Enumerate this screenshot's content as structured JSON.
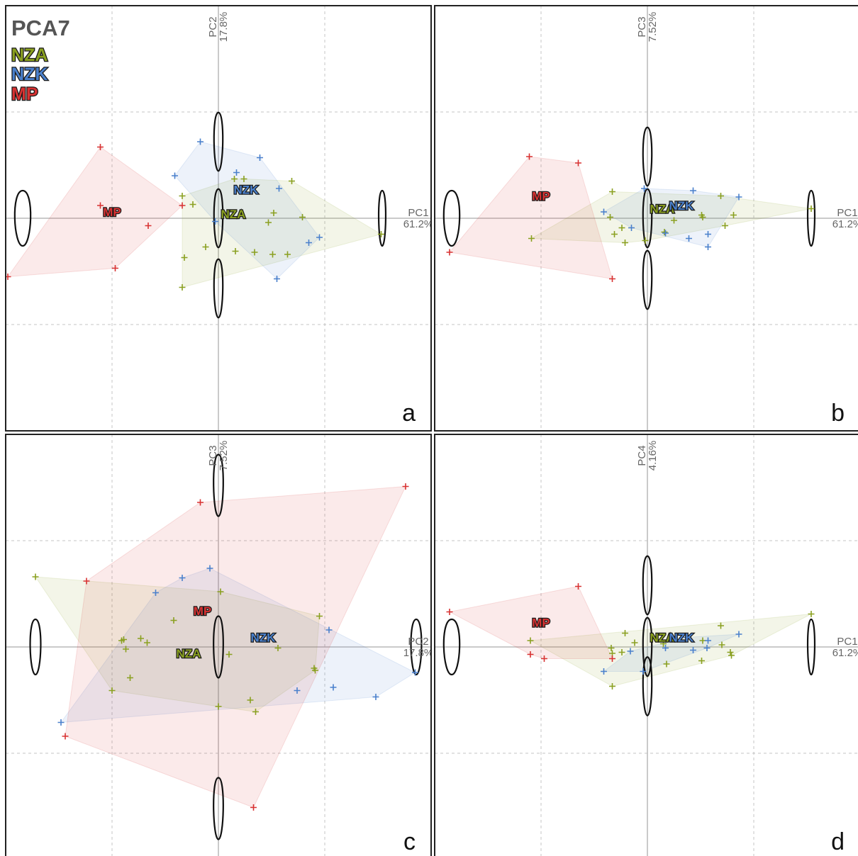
{
  "figure": {
    "title": "PCA7",
    "legend": [
      {
        "name": "NZA",
        "color": "#8aa020"
      },
      {
        "name": "NZK",
        "color": "#4a80cc"
      },
      {
        "name": "MP",
        "color": "#d83232"
      }
    ]
  },
  "chart_data": [
    {
      "type": "scatter",
      "panel": "a",
      "xlabel": "PC1",
      "xpct": "61.2%",
      "ylabel": "PC2",
      "ypct": "17.8%",
      "xlim": [
        -2.0,
        2.0
      ],
      "ylim": [
        -2.0,
        2.0
      ],
      "grid": true,
      "shapes": [
        {
          "x": -1.84,
          "y": 0,
          "w": 0.18,
          "h": 0.52
        },
        {
          "x": 1.54,
          "y": 0,
          "w": 0.08,
          "h": 0.52
        },
        {
          "x": 0,
          "y": 0.72,
          "w": 0.1,
          "h": 0.55
        },
        {
          "x": 0,
          "y": 0,
          "w": 0.1,
          "h": 0.55
        },
        {
          "x": 0,
          "y": -0.66,
          "w": 0.1,
          "h": 0.55
        }
      ],
      "series": [
        {
          "name": "NZA",
          "color": "#8aa020",
          "points": [
            [
              0.69,
              0.35
            ],
            [
              1.53,
              -0.15
            ],
            [
              0.34,
              -0.32
            ],
            [
              0.51,
              -0.34
            ],
            [
              0.79,
              0.01
            ],
            [
              0.52,
              0.05
            ],
            [
              0.15,
              0.37
            ],
            [
              -0.34,
              0.21
            ],
            [
              -0.24,
              0.13
            ],
            [
              -0.12,
              -0.27
            ],
            [
              -0.32,
              -0.37
            ],
            [
              -0.34,
              -0.65
            ],
            [
              0.16,
              -0.31
            ],
            [
              0.24,
              0.37
            ],
            [
              0.47,
              -0.04
            ],
            [
              0.65,
              -0.34
            ]
          ],
          "label": {
            "x": 0.14,
            "y": 0.04
          }
        },
        {
          "name": "NZK",
          "color": "#4a80cc",
          "points": [
            [
              -0.17,
              0.72
            ],
            [
              0.39,
              0.57
            ],
            [
              -0.41,
              0.4
            ],
            [
              0.17,
              0.43
            ],
            [
              0.57,
              0.28
            ],
            [
              0.85,
              -0.23
            ],
            [
              0.95,
              -0.18
            ],
            [
              0.55,
              -0.57
            ],
            [
              -0.03,
              -0.03
            ]
          ],
          "label": {
            "x": 0.26,
            "y": 0.27
          }
        },
        {
          "name": "MP",
          "color": "#d83232",
          "points": [
            [
              -1.11,
              0.67
            ],
            [
              -1.11,
              0.12
            ],
            [
              -0.66,
              -0.07
            ],
            [
              -1.98,
              -0.55
            ],
            [
              -0.97,
              -0.47
            ],
            [
              -0.34,
              0.12
            ]
          ],
          "label": {
            "x": -1.0,
            "y": 0.06
          }
        }
      ]
    },
    {
      "type": "scatter",
      "panel": "b",
      "xlabel": "PC1",
      "xpct": "61.2%",
      "ylabel": "PC3",
      "ypct": "7.52%",
      "xlim": [
        -2.0,
        2.0
      ],
      "ylim": [
        -2.0,
        2.0
      ],
      "grid": true,
      "shapes": [
        {
          "x": -1.84,
          "y": 0,
          "w": 0.18,
          "h": 0.52
        },
        {
          "x": 1.54,
          "y": 0,
          "w": 0.08,
          "h": 0.52
        },
        {
          "x": 0,
          "y": 0.58,
          "w": 0.1,
          "h": 0.55
        },
        {
          "x": 0,
          "y": 0,
          "w": 0.1,
          "h": 0.55
        },
        {
          "x": 0,
          "y": -0.58,
          "w": 0.1,
          "h": 0.55
        }
      ],
      "series": [
        {
          "name": "NZA",
          "color": "#8aa020",
          "points": [
            [
              -1.09,
              -0.19
            ],
            [
              -0.33,
              0.25
            ],
            [
              -0.35,
              0.01
            ],
            [
              -0.24,
              -0.09
            ],
            [
              -0.21,
              -0.23
            ],
            [
              -0.31,
              -0.15
            ],
            [
              -0.02,
              -0.21
            ],
            [
              0.16,
              -0.13
            ],
            [
              0.25,
              -0.02
            ],
            [
              0.51,
              0.03
            ],
            [
              0.69,
              0.21
            ],
            [
              0.73,
              -0.07
            ],
            [
              0.81,
              0.03
            ],
            [
              1.54,
              0.09
            ],
            [
              0.52,
              0.01
            ]
          ],
          "label": {
            "x": 0.14,
            "y": 0.09
          }
        },
        {
          "name": "NZK",
          "color": "#4a80cc",
          "points": [
            [
              -0.41,
              0.06
            ],
            [
              -0.15,
              -0.09
            ],
            [
              -0.03,
              0.28
            ],
            [
              0.43,
              0.26
            ],
            [
              0.86,
              0.2
            ],
            [
              0.17,
              -0.14
            ],
            [
              0.39,
              -0.19
            ],
            [
              0.57,
              -0.27
            ],
            [
              0.57,
              -0.15
            ]
          ],
          "label": {
            "x": 0.32,
            "y": 0.12
          }
        },
        {
          "name": "MP",
          "color": "#d83232",
          "points": [
            [
              -1.11,
              0.58
            ],
            [
              -0.65,
              0.52
            ],
            [
              -1.86,
              -0.32
            ],
            [
              -0.33,
              -0.57
            ]
          ],
          "label": {
            "x": -1.0,
            "y": 0.21
          }
        }
      ]
    },
    {
      "type": "scatter",
      "panel": "c",
      "xlabel": "PC2",
      "xpct": "17.8%",
      "ylabel": "PC3",
      "ypct": "7.52%",
      "xlim": [
        -2.0,
        2.0
      ],
      "ylim": [
        -2.0,
        2.0
      ],
      "grid": true,
      "shapes": [
        {
          "x": -1.72,
          "y": 0,
          "w": 0.12,
          "h": 0.52
        },
        {
          "x": 1.86,
          "y": 0,
          "w": 0.12,
          "h": 0.52
        },
        {
          "x": 0,
          "y": 1.52,
          "w": 0.11,
          "h": 0.58
        },
        {
          "x": 0,
          "y": 0,
          "w": 0.11,
          "h": 0.58
        },
        {
          "x": 0,
          "y": -1.52,
          "w": 0.11,
          "h": 0.58
        }
      ],
      "series": [
        {
          "name": "NZA",
          "color": "#8aa020",
          "points": [
            [
              -1.72,
              0.66
            ],
            [
              0.02,
              0.52
            ],
            [
              -0.42,
              0.25
            ],
            [
              -0.73,
              0.08
            ],
            [
              -0.91,
              0.06
            ],
            [
              -0.87,
              -0.02
            ],
            [
              -0.89,
              0.07
            ],
            [
              -0.67,
              0.04
            ],
            [
              -0.83,
              -0.29
            ],
            [
              -1.0,
              -0.41
            ],
            [
              0.1,
              -0.07
            ],
            [
              0.56,
              -0.01
            ],
            [
              0.95,
              0.29
            ],
            [
              0.9,
              -0.2
            ],
            [
              0.91,
              -0.22
            ],
            [
              0.3,
              -0.5
            ],
            [
              0.35,
              -0.61
            ],
            [
              0.0,
              -0.56
            ]
          ],
          "label": {
            "x": -0.28,
            "y": -0.06
          }
        },
        {
          "name": "NZK",
          "color": "#4a80cc",
          "points": [
            [
              -1.48,
              -0.71
            ],
            [
              -0.34,
              0.65
            ],
            [
              -0.08,
              0.74
            ],
            [
              -0.59,
              0.51
            ],
            [
              1.04,
              0.16
            ],
            [
              1.08,
              -0.38
            ],
            [
              0.74,
              -0.41
            ],
            [
              1.85,
              -0.24
            ],
            [
              1.48,
              -0.47
            ]
          ],
          "label": {
            "x": 0.42,
            "y": 0.09
          }
        },
        {
          "name": "MP",
          "color": "#d83232",
          "points": [
            [
              1.76,
              1.51
            ],
            [
              -0.17,
              1.36
            ],
            [
              -1.24,
              0.62
            ],
            [
              -1.44,
              -0.84
            ],
            [
              0.33,
              -1.51
            ]
          ],
          "label": {
            "x": -0.15,
            "y": 0.34
          }
        }
      ]
    },
    {
      "type": "scatter",
      "panel": "d",
      "xlabel": "PC1",
      "xpct": "61.2%",
      "ylabel": "PC4",
      "ypct": "4.16%",
      "xlim": [
        -2.0,
        2.0
      ],
      "ylim": [
        -2.0,
        2.0
      ],
      "grid": true,
      "shapes": [
        {
          "x": -1.84,
          "y": 0,
          "w": 0.18,
          "h": 0.52
        },
        {
          "x": 1.54,
          "y": 0,
          "w": 0.08,
          "h": 0.52
        },
        {
          "x": 0,
          "y": 0.58,
          "w": 0.1,
          "h": 0.55
        },
        {
          "x": 0,
          "y": 0,
          "w": 0.1,
          "h": 0.55
        },
        {
          "x": 0,
          "y": -0.37,
          "w": 0.1,
          "h": 0.55
        }
      ],
      "series": [
        {
          "name": "NZA",
          "color": "#8aa020",
          "points": [
            [
              -1.1,
              0.06
            ],
            [
              -0.34,
              -0.01
            ],
            [
              -0.33,
              -0.06
            ],
            [
              -0.24,
              -0.05
            ],
            [
              -0.12,
              0.04
            ],
            [
              -0.21,
              0.13
            ],
            [
              -0.33,
              -0.37
            ],
            [
              0.15,
              0.03
            ],
            [
              0.18,
              -0.16
            ],
            [
              0.52,
              0.06
            ],
            [
              0.69,
              0.2
            ],
            [
              0.7,
              0.02
            ],
            [
              0.78,
              -0.05
            ],
            [
              0.79,
              -0.08
            ],
            [
              1.54,
              0.31
            ],
            [
              0.51,
              -0.13
            ]
          ],
          "label": {
            "x": 0.14,
            "y": 0.09
          }
        },
        {
          "name": "NZK",
          "color": "#4a80cc",
          "points": [
            [
              -0.41,
              -0.23
            ],
            [
              -0.16,
              -0.04
            ],
            [
              -0.04,
              -0.23
            ],
            [
              0.17,
              -0.01
            ],
            [
              0.43,
              -0.03
            ],
            [
              0.56,
              -0.01
            ],
            [
              0.57,
              0.06
            ],
            [
              0.86,
              0.12
            ],
            [
              0.37,
              0.09
            ]
          ],
          "label": {
            "x": 0.32,
            "y": 0.09
          }
        },
        {
          "name": "MP",
          "color": "#d83232",
          "points": [
            [
              -1.86,
              0.33
            ],
            [
              -0.65,
              0.57
            ],
            [
              -1.1,
              -0.07
            ],
            [
              -0.97,
              -0.11
            ],
            [
              -0.33,
              -0.11
            ]
          ],
          "label": {
            "x": -1.0,
            "y": 0.23
          }
        }
      ]
    }
  ]
}
